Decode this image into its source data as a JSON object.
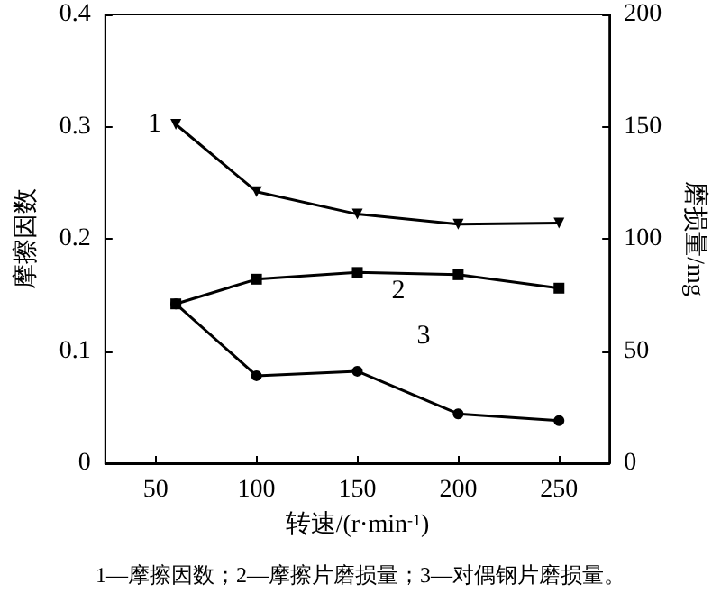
{
  "chart_data": {
    "type": "line",
    "xlabel": "转速/(r·min$^{-1}$)",
    "ylabel": "摩擦因数",
    "y2label": "磨损量/mg",
    "x": [
      60,
      100,
      150,
      200,
      250
    ],
    "series": [
      {
        "name": "1",
        "color": "#000000",
        "marker": "triangle",
        "values": [
          0.302,
          0.242,
          0.222,
          0.213,
          0.214
        ]
      },
      {
        "name": "3",
        "color": "#000000",
        "marker": "circle",
        "axis": "y2",
        "values": [
          71,
          39,
          41,
          22,
          19
        ]
      },
      {
        "name": "2",
        "color": "#000000",
        "marker": "square",
        "axis": "y2",
        "values": [
          71,
          82,
          85,
          84,
          78
        ]
      }
    ],
    "xlim": [
      25,
      275
    ],
    "xticks": [
      50,
      100,
      150,
      200,
      250
    ],
    "ylim": [
      0,
      0.4
    ],
    "yticks": [
      0,
      0.1,
      0.2,
      0.3,
      0.4
    ],
    "y2lim": [
      0,
      200
    ],
    "y2ticks": [
      0,
      50,
      100,
      150,
      200
    ],
    "grid": false,
    "line_style": "solid",
    "annotations": [
      "1—摩擦因数；2—摩擦片磨损量；3—对偶钢片磨损量。"
    ]
  }
}
